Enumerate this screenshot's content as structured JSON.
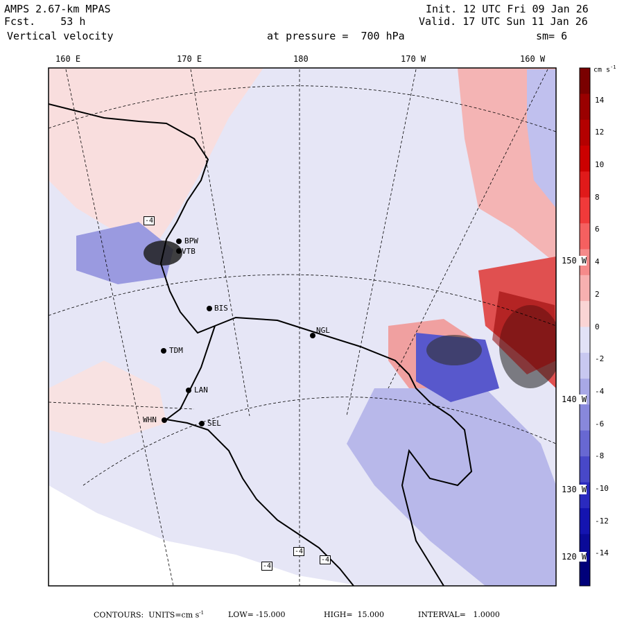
{
  "header": {
    "model": "AMPS 2.67-km MPAS",
    "forecast": "Fcst.    53 h",
    "variable": "Vertical velocity",
    "pressure_text": "at pressure =  700 hPa",
    "init": "Init. 12 UTC Fri 09 Jan 26",
    "valid": "Valid. 17 UTC Sun 11 Jan 26",
    "smoothing": "sm= 6"
  },
  "longitude_labels": [
    "160 E",
    "170 E",
    "180",
    "170 W",
    "160 W"
  ],
  "latitude_labels": [
    "150 W",
    "140 W",
    "130 W",
    "120 W"
  ],
  "colorbar": {
    "units": "cm s",
    "units_exp": "-1",
    "ticks": [
      "14",
      "12",
      "10",
      "8",
      "6",
      "4",
      "2",
      "0",
      "-2",
      "-4",
      "-6",
      "-8",
      "-10",
      "-12",
      "-14"
    ],
    "colors": [
      "#7a0000",
      "#9a0000",
      "#b40000",
      "#cc0000",
      "#e01a1a",
      "#f03a3a",
      "#f56060",
      "#f58a8a",
      "#f7b0b0",
      "#fad4d4",
      "#e2e2f6",
      "#c8c8f0",
      "#a8a8e6",
      "#8888dc",
      "#6868d2",
      "#4848c8",
      "#2a2abf",
      "#1414b0",
      "#0a0a98",
      "#00007a"
    ]
  },
  "stations": [
    {
      "id": "BPW",
      "label": "BPW"
    },
    {
      "id": "VTB",
      "label": "VTB"
    },
    {
      "id": "BIS",
      "label": "BIS"
    },
    {
      "id": "NGL",
      "label": "NGL"
    },
    {
      "id": "TDM",
      "label": "TDM"
    },
    {
      "id": "LAN",
      "label": "LAN"
    },
    {
      "id": "WHN",
      "label": "WHN"
    },
    {
      "id": "SEL",
      "label": "SEL"
    }
  ],
  "extrema_boxes": [
    "-4",
    "-4",
    "-4",
    "-4"
  ],
  "footer": {
    "contours": "CONTOURS:  UNITS=cm s",
    "units_exp": "-1",
    "low": "LOW= -15.000",
    "high": "HIGH=  15.000",
    "interval": "INTERVAL=   1.0000"
  }
}
